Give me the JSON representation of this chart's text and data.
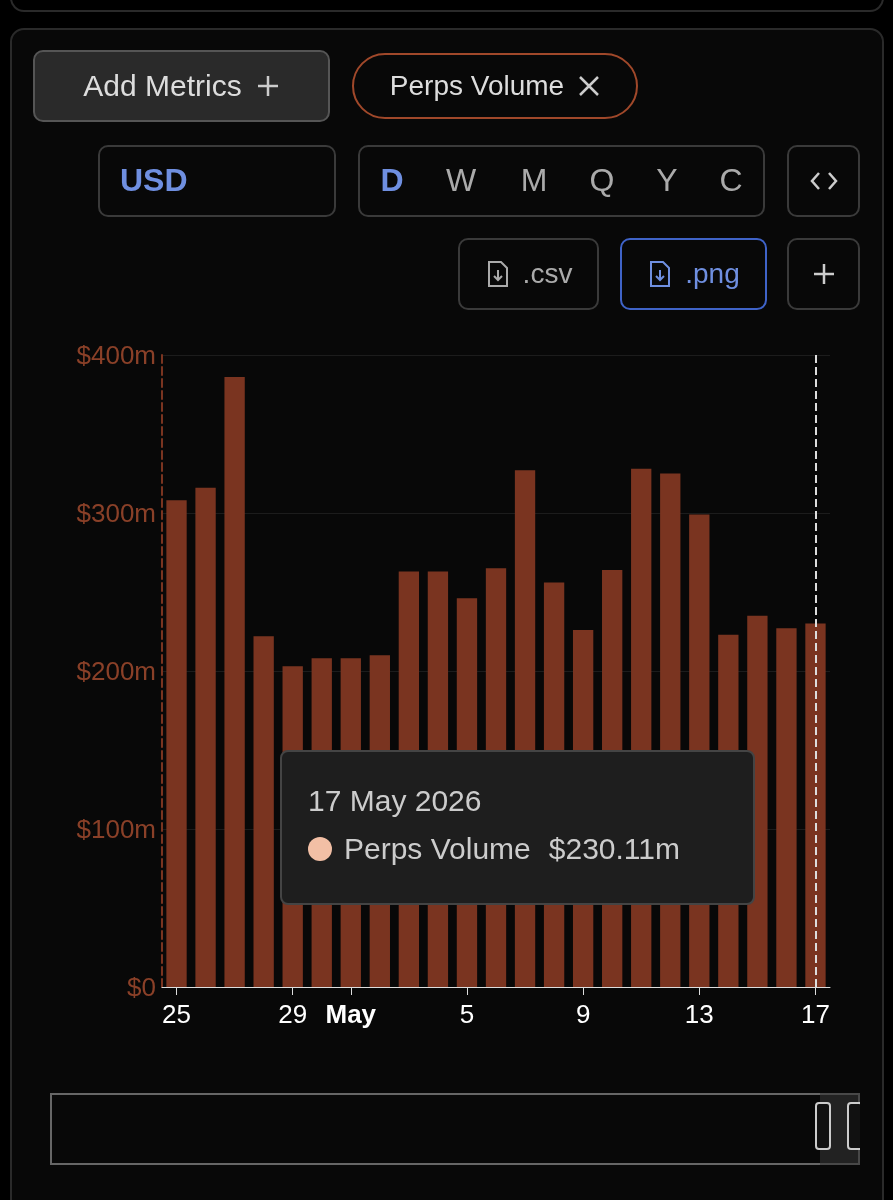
{
  "chart_data": {
    "type": "bar",
    "categories": [
      "25",
      null,
      null,
      null,
      "29",
      null,
      "May",
      null,
      null,
      null,
      "5",
      null,
      null,
      null,
      "9",
      null,
      null,
      null,
      "13",
      null,
      null,
      null,
      "17"
    ],
    "values": [
      308,
      316,
      386,
      222,
      203,
      208,
      208,
      210,
      263,
      263,
      246,
      265,
      327,
      256,
      226,
      264,
      328,
      325,
      299,
      223,
      235,
      227,
      230.11
    ],
    "color": "#7a3420",
    "ylim": [
      0,
      400
    ],
    "yticks": [
      {
        "value": 0,
        "label": "$0"
      },
      {
        "value": 100,
        "label": "$100m"
      },
      {
        "value": 200,
        "label": "$200m"
      },
      {
        "value": 300,
        "label": "$300m"
      },
      {
        "value": 400,
        "label": "$400m"
      }
    ],
    "grid": "y",
    "ref_lines": [
      {
        "axis": "x",
        "value": "17",
        "color": "#dddddd",
        "line_style": "dashed"
      }
    ],
    "annotations": [
      "Add Metrics",
      "Perps Volume",
      "USD",
      "D",
      "W",
      "M",
      "Q",
      "Y",
      "C",
      ".csv",
      ".png",
      "17 May 2026",
      "Perps Volume",
      "$230.11m"
    ]
  }
}
